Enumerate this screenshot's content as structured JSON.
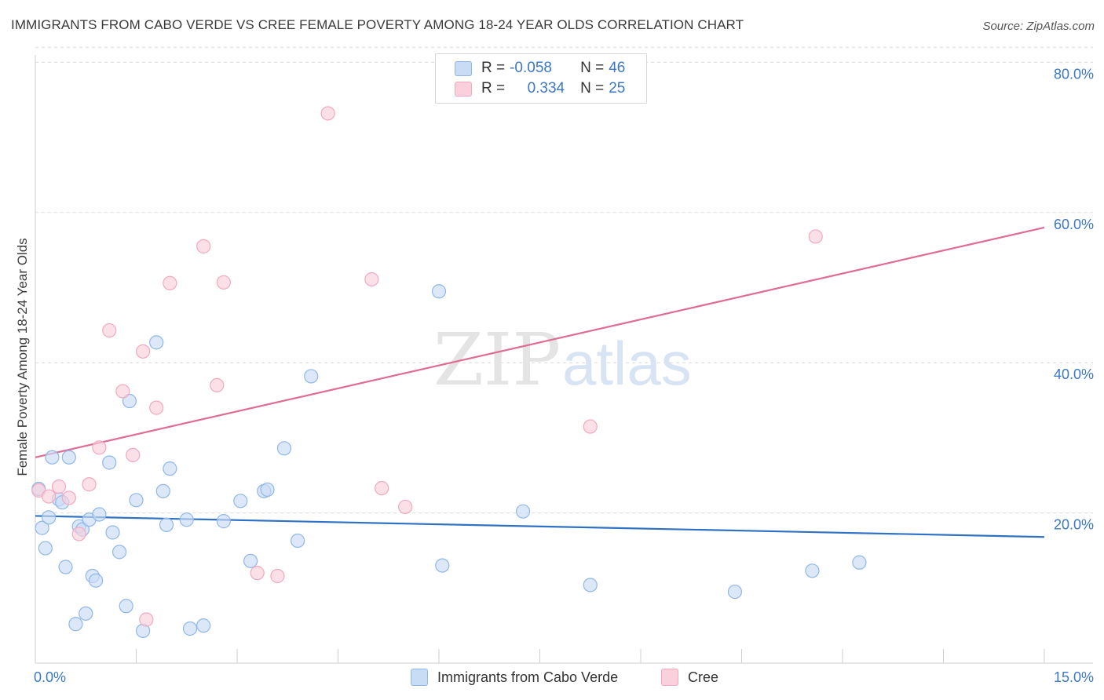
{
  "title": "IMMIGRANTS FROM CABO VERDE VS CREE FEMALE POVERTY AMONG 18-24 YEAR OLDS CORRELATION CHART",
  "source": "Source: ZipAtlas.com",
  "watermark": {
    "zip": "ZIP",
    "atlas": "atlas"
  },
  "legend": {
    "rows": [
      {
        "r_label": "R =",
        "r_value": "-0.058",
        "n_label": "N =",
        "n_value": "46"
      },
      {
        "r_label": "R =",
        "r_value": "0.334",
        "n_label": "N =",
        "n_value": "25"
      }
    ]
  },
  "chart_data": {
    "type": "scatter",
    "title": "IMMIGRANTS FROM CABO VERDE VS CREE FEMALE POVERTY AMONG 18-24 YEAR OLDS CORRELATION CHART",
    "xlabel": "",
    "ylabel": "Female Poverty Among 18-24 Year Olds",
    "xlim": [
      0,
      15
    ],
    "ylim": [
      0,
      82
    ],
    "x_tick_labels": [
      "0.0%",
      "15.0%"
    ],
    "y_ticks": [
      20,
      40,
      60,
      80
    ],
    "y_tick_labels": [
      "20.0%",
      "40.0%",
      "60.0%",
      "80.0%"
    ],
    "grid": true,
    "legend_position": "top-center",
    "series": [
      {
        "name": "Immigrants from Cabo Verde",
        "color": "#8fb7ea",
        "fill": "#c9dcf5",
        "line_color": "#2f72c4",
        "R": -0.058,
        "N": 46,
        "trend": {
          "x": [
            0,
            15
          ],
          "y": [
            19.6,
            16.8
          ]
        },
        "points": [
          [
            0.05,
            23.2
          ],
          [
            0.1,
            18.0
          ],
          [
            0.15,
            15.3
          ],
          [
            0.2,
            19.4
          ],
          [
            0.25,
            27.4
          ],
          [
            0.35,
            21.8
          ],
          [
            0.4,
            21.4
          ],
          [
            0.45,
            12.8
          ],
          [
            0.5,
            27.4
          ],
          [
            0.6,
            5.2
          ],
          [
            0.65,
            18.2
          ],
          [
            0.7,
            17.8
          ],
          [
            0.75,
            6.6
          ],
          [
            0.8,
            19.1
          ],
          [
            0.85,
            11.6
          ],
          [
            0.9,
            11.0
          ],
          [
            0.95,
            19.8
          ],
          [
            1.1,
            26.7
          ],
          [
            1.15,
            17.4
          ],
          [
            1.25,
            14.8
          ],
          [
            1.35,
            7.6
          ],
          [
            1.4,
            34.9
          ],
          [
            1.5,
            21.7
          ],
          [
            1.6,
            4.3
          ],
          [
            1.8,
            42.7
          ],
          [
            1.9,
            22.9
          ],
          [
            1.95,
            18.4
          ],
          [
            2.0,
            25.9
          ],
          [
            2.25,
            19.1
          ],
          [
            2.3,
            4.6
          ],
          [
            2.5,
            5.0
          ],
          [
            2.8,
            18.9
          ],
          [
            3.05,
            21.6
          ],
          [
            3.2,
            13.6
          ],
          [
            3.4,
            22.9
          ],
          [
            3.45,
            23.1
          ],
          [
            3.7,
            28.6
          ],
          [
            3.9,
            16.3
          ],
          [
            4.1,
            38.2
          ],
          [
            6.0,
            49.5
          ],
          [
            6.05,
            13.0
          ],
          [
            7.25,
            20.2
          ],
          [
            8.25,
            10.4
          ],
          [
            10.4,
            9.5
          ],
          [
            11.55,
            12.3
          ],
          [
            12.25,
            13.4
          ]
        ]
      },
      {
        "name": "Cree",
        "color": "#f2a9c0",
        "fill": "#f9d0dc",
        "line_color": "#e06b93",
        "R": 0.334,
        "N": 25,
        "trend": {
          "x": [
            0,
            15
          ],
          "y": [
            27.4,
            58.0
          ]
        },
        "points": [
          [
            0.05,
            23.0
          ],
          [
            0.2,
            22.2
          ],
          [
            0.35,
            23.5
          ],
          [
            0.5,
            22.0
          ],
          [
            0.65,
            17.2
          ],
          [
            0.8,
            23.8
          ],
          [
            0.95,
            28.7
          ],
          [
            1.1,
            44.3
          ],
          [
            1.3,
            36.2
          ],
          [
            1.45,
            27.7
          ],
          [
            1.6,
            41.5
          ],
          [
            1.8,
            34.0
          ],
          [
            2.0,
            50.6
          ],
          [
            2.5,
            55.5
          ],
          [
            2.7,
            37.0
          ],
          [
            2.8,
            50.7
          ],
          [
            3.3,
            12.0
          ],
          [
            3.6,
            11.6
          ],
          [
            1.65,
            5.8
          ],
          [
            4.35,
            73.2
          ],
          [
            5.0,
            51.1
          ],
          [
            5.15,
            23.3
          ],
          [
            5.5,
            20.8
          ],
          [
            8.25,
            31.5
          ],
          [
            11.6,
            56.8
          ]
        ]
      }
    ]
  }
}
